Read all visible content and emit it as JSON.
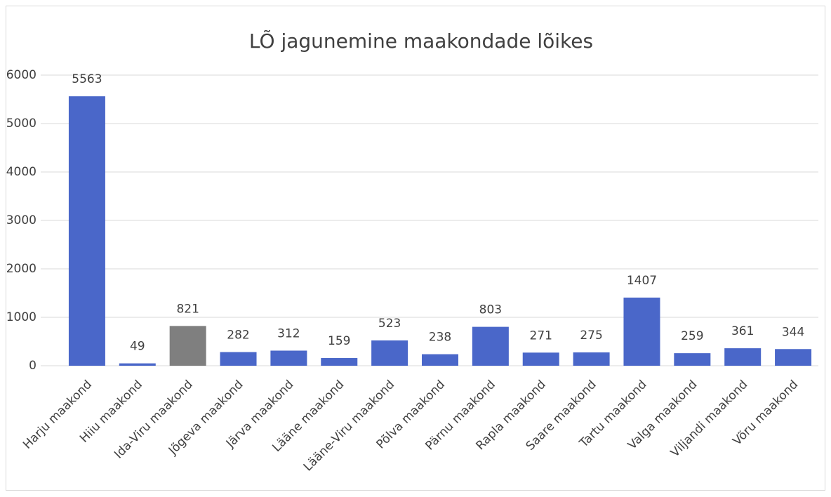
{
  "chart_data": {
    "type": "bar",
    "title": "LÕ jagunemine maakondade lõikes",
    "categories": [
      "Harju maakond",
      "Hiiu maakond",
      "Ida-Viru maakond",
      "Jõgeva maakond",
      "Järva maakond",
      "Lääne maakond",
      "Lääne-Viru maakond",
      "Põlva maakond",
      "Pärnu maakond",
      "Rapla maakond",
      "Saare maakond",
      "Tartu maakond",
      "Valga maakond",
      "Viljandi maakond",
      "Võru maakond"
    ],
    "values": [
      5563,
      49,
      821,
      282,
      312,
      159,
      523,
      238,
      803,
      271,
      275,
      1407,
      259,
      361,
      344
    ],
    "colors": [
      "#4a67c9",
      "#4a67c9",
      "#7f7f7f",
      "#4a67c9",
      "#4a67c9",
      "#4a67c9",
      "#4a67c9",
      "#4a67c9",
      "#4a67c9",
      "#4a67c9",
      "#4a67c9",
      "#4a67c9",
      "#4a67c9",
      "#4a67c9",
      "#4a67c9"
    ],
    "ylim": [
      0,
      6000
    ],
    "yticks": [
      0,
      1000,
      2000,
      3000,
      4000,
      5000,
      6000
    ],
    "grid": true
  }
}
